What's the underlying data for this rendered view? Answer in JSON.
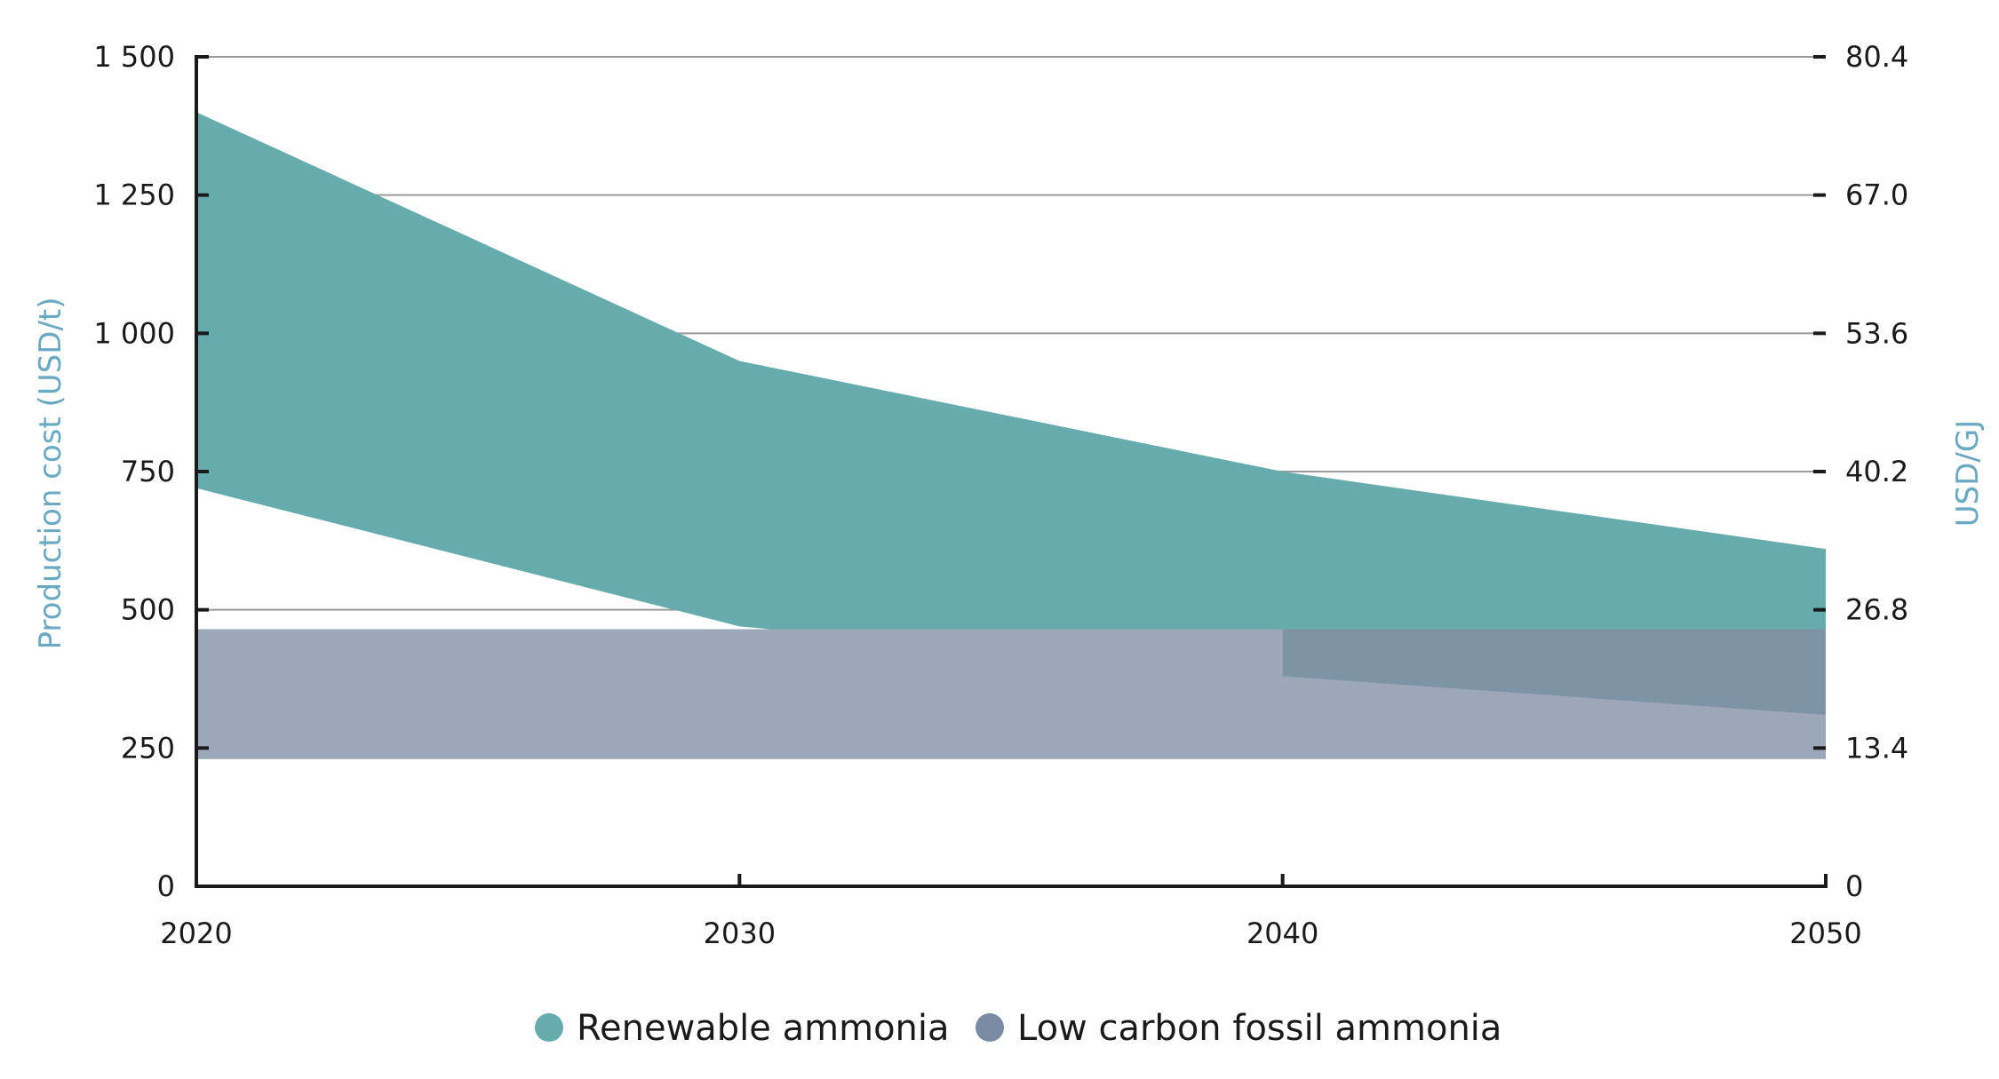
{
  "chart_data": {
    "type": "area",
    "x": [
      2020,
      2030,
      2040,
      2050
    ],
    "x_tick_labels": [
      "2020",
      "2030",
      "2040",
      "2050"
    ],
    "xlim": [
      2020,
      2050
    ],
    "ylim": [
      0,
      1500
    ],
    "y_ticks": [
      0,
      250,
      500,
      750,
      1000,
      1250,
      1500
    ],
    "y_tick_labels": [
      "0",
      "250",
      "500",
      "750",
      "1 000",
      "1 250",
      "1 500"
    ],
    "ylabel": "Production cost (USD/t)",
    "y2label": "USD/GJ",
    "y2lim": [
      0,
      80.4
    ],
    "y2_tick_labels": [
      "0",
      "13.4",
      "26.8",
      "40.2",
      "53.6",
      "67.0",
      "80.4"
    ],
    "grid": "horizontal",
    "legend_position": "bottom-center",
    "series": [
      {
        "name": "Renewable ammonia",
        "kind": "range",
        "color": "#66acaf",
        "lower": [
          720,
          470,
          380,
          310
        ],
        "upper": [
          1400,
          950,
          750,
          610
        ]
      },
      {
        "name": "Low carbon fossil ammonia",
        "kind": "range",
        "color": "#7a8ba3",
        "lower": [
          230,
          230,
          230,
          230
        ],
        "upper": [
          465,
          465,
          465,
          465
        ]
      }
    ],
    "colors": {
      "axis": "#1a1a1a",
      "grid": "#9a9a9a",
      "axis_title": "#6aa9c2",
      "fossil_fill": "#9ca8b9",
      "overlap_fill": "#7d94a7"
    }
  }
}
